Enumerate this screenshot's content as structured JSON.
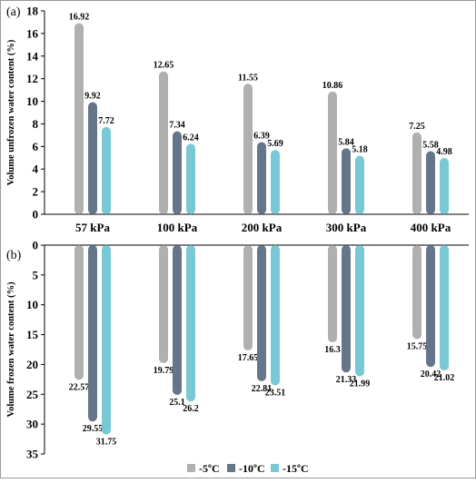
{
  "chart_data": [
    {
      "panel_label": "(a)",
      "type": "bar",
      "ylabel": "Volume unfrozen water content (%)",
      "categories": [
        "57 kPa",
        "100 kPa",
        "200 kPa",
        "300 kPa",
        "400 kPa"
      ],
      "ylim": [
        0,
        18
      ],
      "yticks": [
        0,
        2,
        4,
        6,
        8,
        10,
        12,
        14,
        16,
        18
      ],
      "series": [
        {
          "name": "-5ºC",
          "color": "#b0b0b0",
          "values": [
            16.92,
            12.65,
            11.55,
            10.86,
            7.25
          ],
          "labels": [
            "16.92",
            "12.65",
            "11.55",
            "10.86",
            "7.25"
          ]
        },
        {
          "name": "-10ºC",
          "color": "#66768a",
          "values": [
            9.92,
            7.34,
            6.39,
            5.84,
            5.58
          ],
          "labels": [
            "9.92",
            "7.34",
            "6.39",
            "5.84",
            "5.58"
          ]
        },
        {
          "name": "-15ºC",
          "color": "#79c8d6",
          "values": [
            7.72,
            6.24,
            5.69,
            5.18,
            4.98
          ],
          "labels": [
            "7.72",
            "6.24",
            "5.69",
            "5.18",
            "4.98"
          ]
        }
      ]
    },
    {
      "panel_label": "(b)",
      "type": "bar",
      "ylabel": "Volume frozen water content (%)",
      "categories": [
        "57 kPa",
        "100 kPa",
        "200 kPa",
        "300 kPa",
        "400 kPa"
      ],
      "ylim": [
        0,
        35
      ],
      "inverted_y": true,
      "yticks": [
        0,
        5,
        10,
        15,
        20,
        25,
        30,
        35
      ],
      "series": [
        {
          "name": "-5ºC",
          "color": "#b0b0b0",
          "values": [
            22.57,
            19.79,
            17.65,
            16.3,
            15.75
          ],
          "labels": [
            "22.57",
            "19.79",
            "17.65",
            "16.3",
            "15.75"
          ]
        },
        {
          "name": "-10ºC",
          "color": "#66768a",
          "values": [
            29.55,
            25.1,
            22.81,
            21.33,
            20.42
          ],
          "labels": [
            "29.55",
            "25.1",
            "22.81",
            "21.33",
            "20.42"
          ]
        },
        {
          "name": "-15ºC",
          "color": "#79c8d6",
          "values": [
            31.75,
            26.2,
            23.51,
            21.99,
            21.02
          ],
          "labels": [
            "31.75",
            "26.2",
            "23.51",
            "21.99",
            "21.02"
          ]
        }
      ]
    }
  ],
  "legend": {
    "placement": "bottom-center",
    "items": [
      {
        "label": "-5ºC",
        "color": "#b0b0b0"
      },
      {
        "label": "-10ºC",
        "color": "#66768a"
      },
      {
        "label": "-15ºC",
        "color": "#79c8d6"
      }
    ]
  }
}
